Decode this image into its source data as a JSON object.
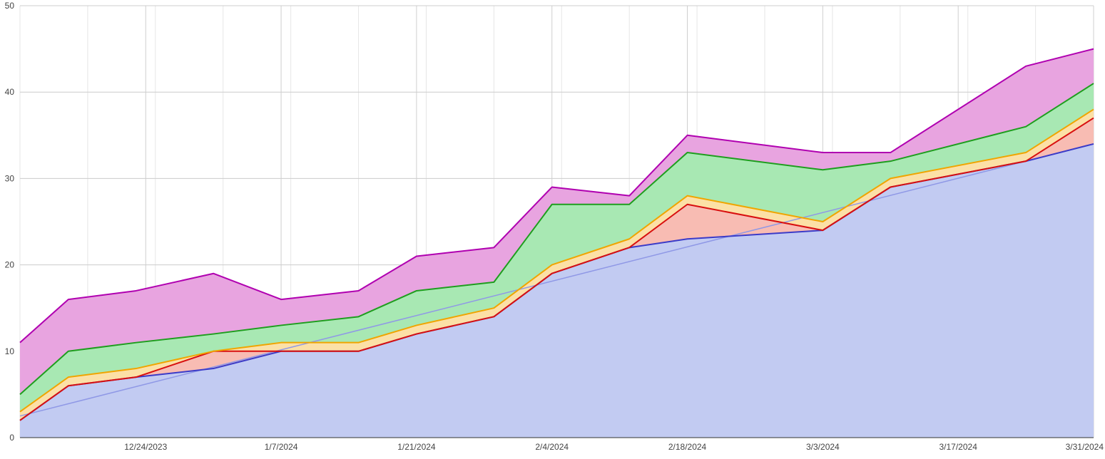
{
  "chart_data": {
    "type": "area",
    "stacked": true,
    "title": "",
    "xlabel": "",
    "ylabel": "",
    "ylim": [
      0,
      50
    ],
    "y_ticks": [
      "0",
      "10",
      "20",
      "30",
      "40",
      "50"
    ],
    "y_tick_values": [
      0,
      10,
      20,
      30,
      40,
      50
    ],
    "x_range": [
      "2023-12-11",
      "2024-03-31"
    ],
    "x_tick_labels": [
      "12/24/2023",
      "1/7/2024",
      "1/21/2024",
      "2/4/2024",
      "2/18/2024",
      "3/3/2024",
      "3/17/2024",
      "3/31/2024"
    ],
    "x_tick_dates": [
      "2023-12-24",
      "2024-01-07",
      "2024-01-21",
      "2024-02-04",
      "2024-02-18",
      "2024-03-03",
      "2024-03-17",
      "2024-03-31"
    ],
    "grid": true,
    "legend": "none",
    "x": [
      "2023-12-11",
      "2023-12-16",
      "2023-12-23",
      "2023-12-31",
      "2024-01-07",
      "2024-01-15",
      "2024-01-21",
      "2024-01-29",
      "2024-02-04",
      "2024-02-12",
      "2024-02-18",
      "2024-03-03",
      "2024-03-10",
      "2024-03-24",
      "2024-03-31"
    ],
    "series": [
      {
        "color": "#3b3bc8",
        "fill": "#c2cbf2",
        "values": [
          2,
          6,
          7,
          8,
          10,
          10,
          12,
          14,
          19,
          22,
          23,
          24,
          29,
          32,
          34
        ]
      },
      {
        "color": "#d80f0f",
        "fill": "#f8bcb3",
        "values": [
          0,
          0,
          0,
          2,
          0,
          0,
          0,
          0,
          0,
          0,
          4,
          0,
          0,
          0,
          3
        ]
      },
      {
        "color": "#f0a500",
        "fill": "#fce0a6",
        "values": [
          1,
          1,
          1,
          0,
          1,
          1,
          1,
          1,
          1,
          1,
          1,
          1,
          1,
          1,
          1
        ]
      },
      {
        "color": "#1e9e1e",
        "fill": "#a8e8b3",
        "values": [
          2,
          3,
          3,
          2,
          2,
          3,
          4,
          3,
          7,
          4,
          5,
          6,
          2,
          3,
          3
        ]
      },
      {
        "color": "#b000b0",
        "fill": "#e8a4e0",
        "values": [
          6,
          6,
          6,
          7,
          3,
          3,
          4,
          4,
          2,
          1,
          2,
          2,
          1,
          7,
          4
        ]
      }
    ],
    "trendline": {
      "color": "#8f98e6",
      "from": [
        "2023-12-11",
        2.5
      ],
      "to": [
        "2024-03-31",
        34
      ]
    }
  }
}
